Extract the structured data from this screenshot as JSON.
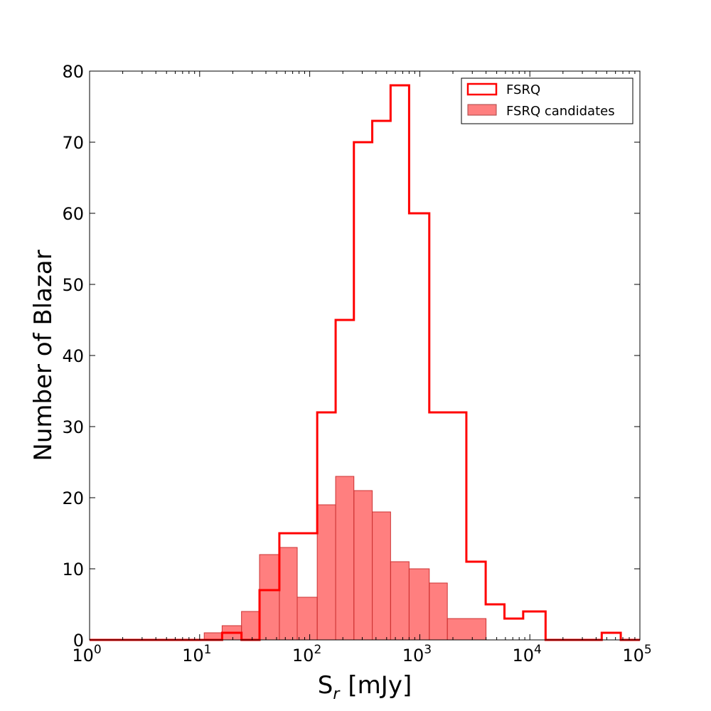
{
  "chart_data": {
    "type": "histogram",
    "xscale": "log",
    "xlim": [
      1,
      100000
    ],
    "ylim": [
      0,
      80
    ],
    "xlabel_base": "S",
    "xlabel_sub": "r",
    "xlabel_unit": "[mJy]",
    "ylabel": "Number of Blazar",
    "x_ticks": [
      {
        "base": "10",
        "exp": "0"
      },
      {
        "base": "10",
        "exp": "1"
      },
      {
        "base": "10",
        "exp": "2"
      },
      {
        "base": "10",
        "exp": "3"
      },
      {
        "base": "10",
        "exp": "4"
      },
      {
        "base": "10",
        "exp": "5"
      }
    ],
    "y_ticks": [
      "0",
      "10",
      "20",
      "30",
      "40",
      "50",
      "60",
      "70",
      "80"
    ],
    "bin_edges": [
      1,
      1.47,
      2.15,
      3.16,
      4.64,
      6.81,
      10.0,
      14.7,
      21.5,
      31.6,
      46.4,
      68.1,
      100,
      147,
      215,
      316,
      464,
      681,
      1000,
      1468,
      2154,
      3162,
      4642,
      6813,
      10000,
      14678,
      21544,
      31623,
      46416,
      68129,
      100000
    ],
    "series": [
      {
        "name": "FSRQ",
        "style": "step",
        "color": "#ff0000",
        "edges": [
          1,
          16,
          24,
          35,
          53,
          77,
          117,
          172,
          252,
          370,
          543,
          800,
          1220,
          1780,
          2650,
          3970,
          5880,
          8700,
          13900,
          45000,
          67000,
          100000
        ],
        "values": [
          0,
          1,
          0,
          7,
          15,
          15,
          32,
          45,
          70,
          73,
          78,
          60,
          32,
          32,
          11,
          5,
          3,
          4,
          0,
          1,
          0
        ]
      },
      {
        "name": "FSRQ candidates",
        "style": "filled",
        "color": "#ff0000",
        "edges": [
          11,
          16,
          24,
          35,
          53,
          77,
          117,
          172,
          252,
          370,
          543,
          800,
          1220,
          1780,
          4000
        ],
        "values": [
          1,
          2,
          4,
          12,
          13,
          6,
          19,
          23,
          21,
          18,
          11,
          10,
          8,
          3
        ]
      }
    ],
    "legend": {
      "position": "top-right",
      "entries": [
        "FSRQ",
        "FSRQ candidates"
      ]
    }
  }
}
